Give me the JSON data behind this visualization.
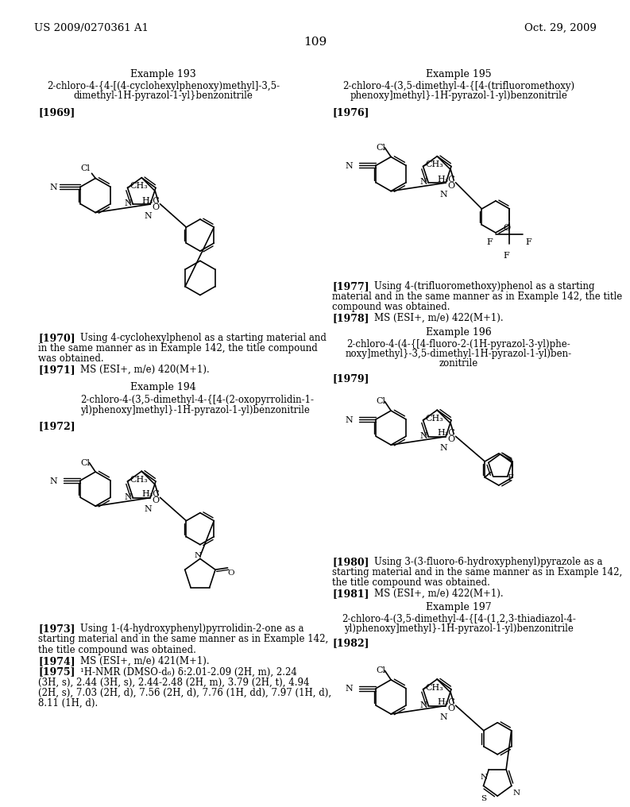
{
  "background_color": "#ffffff",
  "font_color": "#000000",
  "header_left": "US 2009/0270361 A1",
  "header_right": "Oct. 29, 2009",
  "page_number": "109"
}
